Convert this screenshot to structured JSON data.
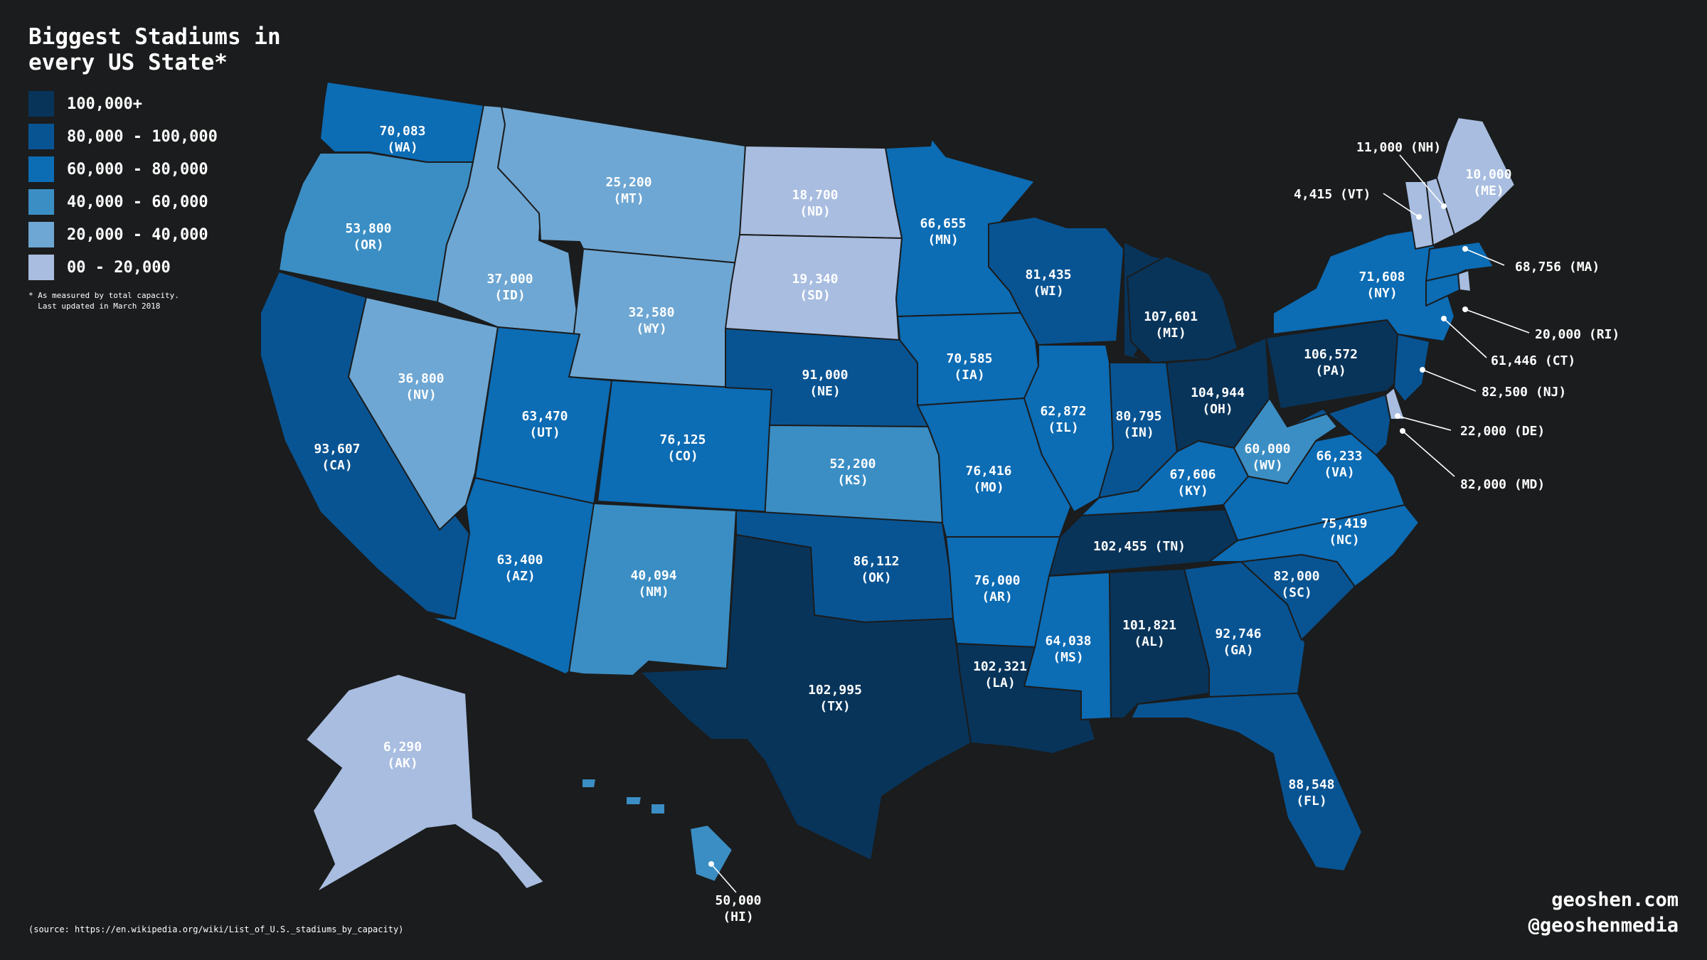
{
  "title": "Biggest Stadiums in every US State*",
  "legend": [
    {
      "label": "100,000+",
      "color": "#08345a"
    },
    {
      "label": "80,000 - 100,000",
      "color": "#085493"
    },
    {
      "label": "60,000 - 80,000",
      "color": "#0c6cb4"
    },
    {
      "label": "40,000 - 60,000",
      "color": "#3b8ec4"
    },
    {
      "label": "20,000 - 40,000",
      "color": "#6ea7d3"
    },
    {
      "label": "00 - 20,000",
      "color": "#a8bde0"
    }
  ],
  "note": "* As measured by total capacity.\n  Last updated in March 2018",
  "source": "(source: https://en.wikipedia.org/wiki/List_of_U.S._stadiums_by_capacity)",
  "credit": {
    "site": "geoshen.com",
    "handle": "@geoshenmedia"
  },
  "states": [
    {
      "abbr": "WA",
      "value": "70,083"
    },
    {
      "abbr": "OR",
      "value": "53,800"
    },
    {
      "abbr": "CA",
      "value": "93,607"
    },
    {
      "abbr": "NV",
      "value": "36,800"
    },
    {
      "abbr": "ID",
      "value": "37,000"
    },
    {
      "abbr": "MT",
      "value": "25,200"
    },
    {
      "abbr": "WY",
      "value": "32,580"
    },
    {
      "abbr": "UT",
      "value": "63,470"
    },
    {
      "abbr": "AZ",
      "value": "63,400"
    },
    {
      "abbr": "CO",
      "value": "76,125"
    },
    {
      "abbr": "NM",
      "value": "40,094"
    },
    {
      "abbr": "ND",
      "value": "18,700"
    },
    {
      "abbr": "SD",
      "value": "19,340"
    },
    {
      "abbr": "NE",
      "value": "91,000"
    },
    {
      "abbr": "KS",
      "value": "52,200"
    },
    {
      "abbr": "OK",
      "value": "86,112"
    },
    {
      "abbr": "TX",
      "value": "102,995"
    },
    {
      "abbr": "MN",
      "value": "66,655"
    },
    {
      "abbr": "IA",
      "value": "70,585"
    },
    {
      "abbr": "MO",
      "value": "76,416"
    },
    {
      "abbr": "AR",
      "value": "76,000"
    },
    {
      "abbr": "LA",
      "value": "102,321"
    },
    {
      "abbr": "WI",
      "value": "81,435"
    },
    {
      "abbr": "IL",
      "value": "62,872"
    },
    {
      "abbr": "MI",
      "value": "107,601"
    },
    {
      "abbr": "IN",
      "value": "80,795"
    },
    {
      "abbr": "OH",
      "value": "104,944"
    },
    {
      "abbr": "KY",
      "value": "67,606"
    },
    {
      "abbr": "TN",
      "value": "102,455"
    },
    {
      "abbr": "MS",
      "value": "64,038"
    },
    {
      "abbr": "AL",
      "value": "101,821"
    },
    {
      "abbr": "GA",
      "value": "92,746"
    },
    {
      "abbr": "FL",
      "value": "88,548"
    },
    {
      "abbr": "SC",
      "value": "82,000"
    },
    {
      "abbr": "NC",
      "value": "75,419"
    },
    {
      "abbr": "VA",
      "value": "66,233"
    },
    {
      "abbr": "WV",
      "value": "60,000"
    },
    {
      "abbr": "PA",
      "value": "106,572"
    },
    {
      "abbr": "NY",
      "value": "71,608"
    },
    {
      "abbr": "ME",
      "value": "10,000"
    },
    {
      "abbr": "AK",
      "value": "6,290"
    },
    {
      "abbr": "HI",
      "value": "50,000"
    },
    {
      "abbr": "VT",
      "value": "4,415"
    },
    {
      "abbr": "NH",
      "value": "11,000"
    },
    {
      "abbr": "MA",
      "value": "68,756"
    },
    {
      "abbr": "RI",
      "value": "20,000"
    },
    {
      "abbr": "CT",
      "value": "61,446"
    },
    {
      "abbr": "NJ",
      "value": "82,500"
    },
    {
      "abbr": "DE",
      "value": "22,000"
    },
    {
      "abbr": "MD",
      "value": "82,000"
    }
  ]
}
